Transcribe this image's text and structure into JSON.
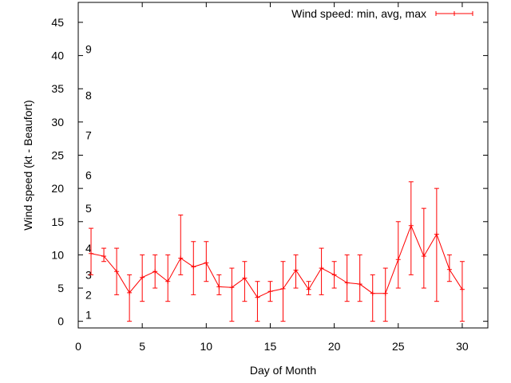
{
  "chart_data": {
    "type": "line",
    "title": "",
    "xlabel": "Day of Month",
    "ylabel": "Wind speed (kt - Beaufort)",
    "xlim": [
      0,
      32
    ],
    "ylim": [
      -1,
      48
    ],
    "x_ticks": [
      0,
      5,
      10,
      15,
      20,
      25,
      30
    ],
    "y_ticks": [
      0,
      5,
      10,
      15,
      20,
      25,
      30,
      35,
      40,
      45
    ],
    "grid": false,
    "legend_position": "top-right",
    "series": [
      {
        "name": "Wind speed: min, avg, max",
        "color": "#ff0000",
        "x": [
          1,
          2,
          3,
          4,
          5,
          6,
          7,
          8,
          9,
          10,
          11,
          12,
          13,
          14,
          15,
          16,
          17,
          18,
          19,
          20,
          21,
          22,
          23,
          24,
          25,
          26,
          27,
          28,
          29,
          30
        ],
        "min": [
          7,
          9,
          4,
          0,
          3,
          5,
          3,
          7,
          4,
          6,
          4,
          0,
          3,
          0,
          3,
          0,
          5,
          4,
          4,
          5,
          3,
          3,
          0,
          0,
          5,
          7,
          5,
          3,
          6,
          0
        ],
        "avg": [
          10.2,
          9.8,
          7.5,
          4.3,
          6.6,
          7.5,
          6.0,
          9.5,
          8.2,
          8.8,
          5.2,
          5.1,
          6.5,
          3.6,
          4.5,
          4.9,
          7.7,
          4.8,
          8.0,
          7.0,
          5.8,
          5.6,
          4.2,
          4.2,
          9.3,
          14.4,
          9.8,
          13.1,
          7.8,
          4.8
        ],
        "max": [
          14,
          11,
          11,
          7,
          10,
          10,
          10,
          16,
          12,
          12,
          7,
          8,
          9,
          6,
          6,
          9,
          10,
          6,
          11,
          9,
          10,
          10,
          7,
          8,
          15,
          21,
          17,
          20,
          10,
          9
        ]
      }
    ],
    "beaufort_labels": [
      {
        "label": "1",
        "y": 1.0
      },
      {
        "label": "2",
        "y": 4.0
      },
      {
        "label": "3",
        "y": 7.0
      },
      {
        "label": "4",
        "y": 11.0
      },
      {
        "label": "5",
        "y": 17.0
      },
      {
        "label": "6",
        "y": 22.0
      },
      {
        "label": "7",
        "y": 28.0
      },
      {
        "label": "8",
        "y": 34.0
      },
      {
        "label": "9",
        "y": 41.0
      }
    ]
  }
}
